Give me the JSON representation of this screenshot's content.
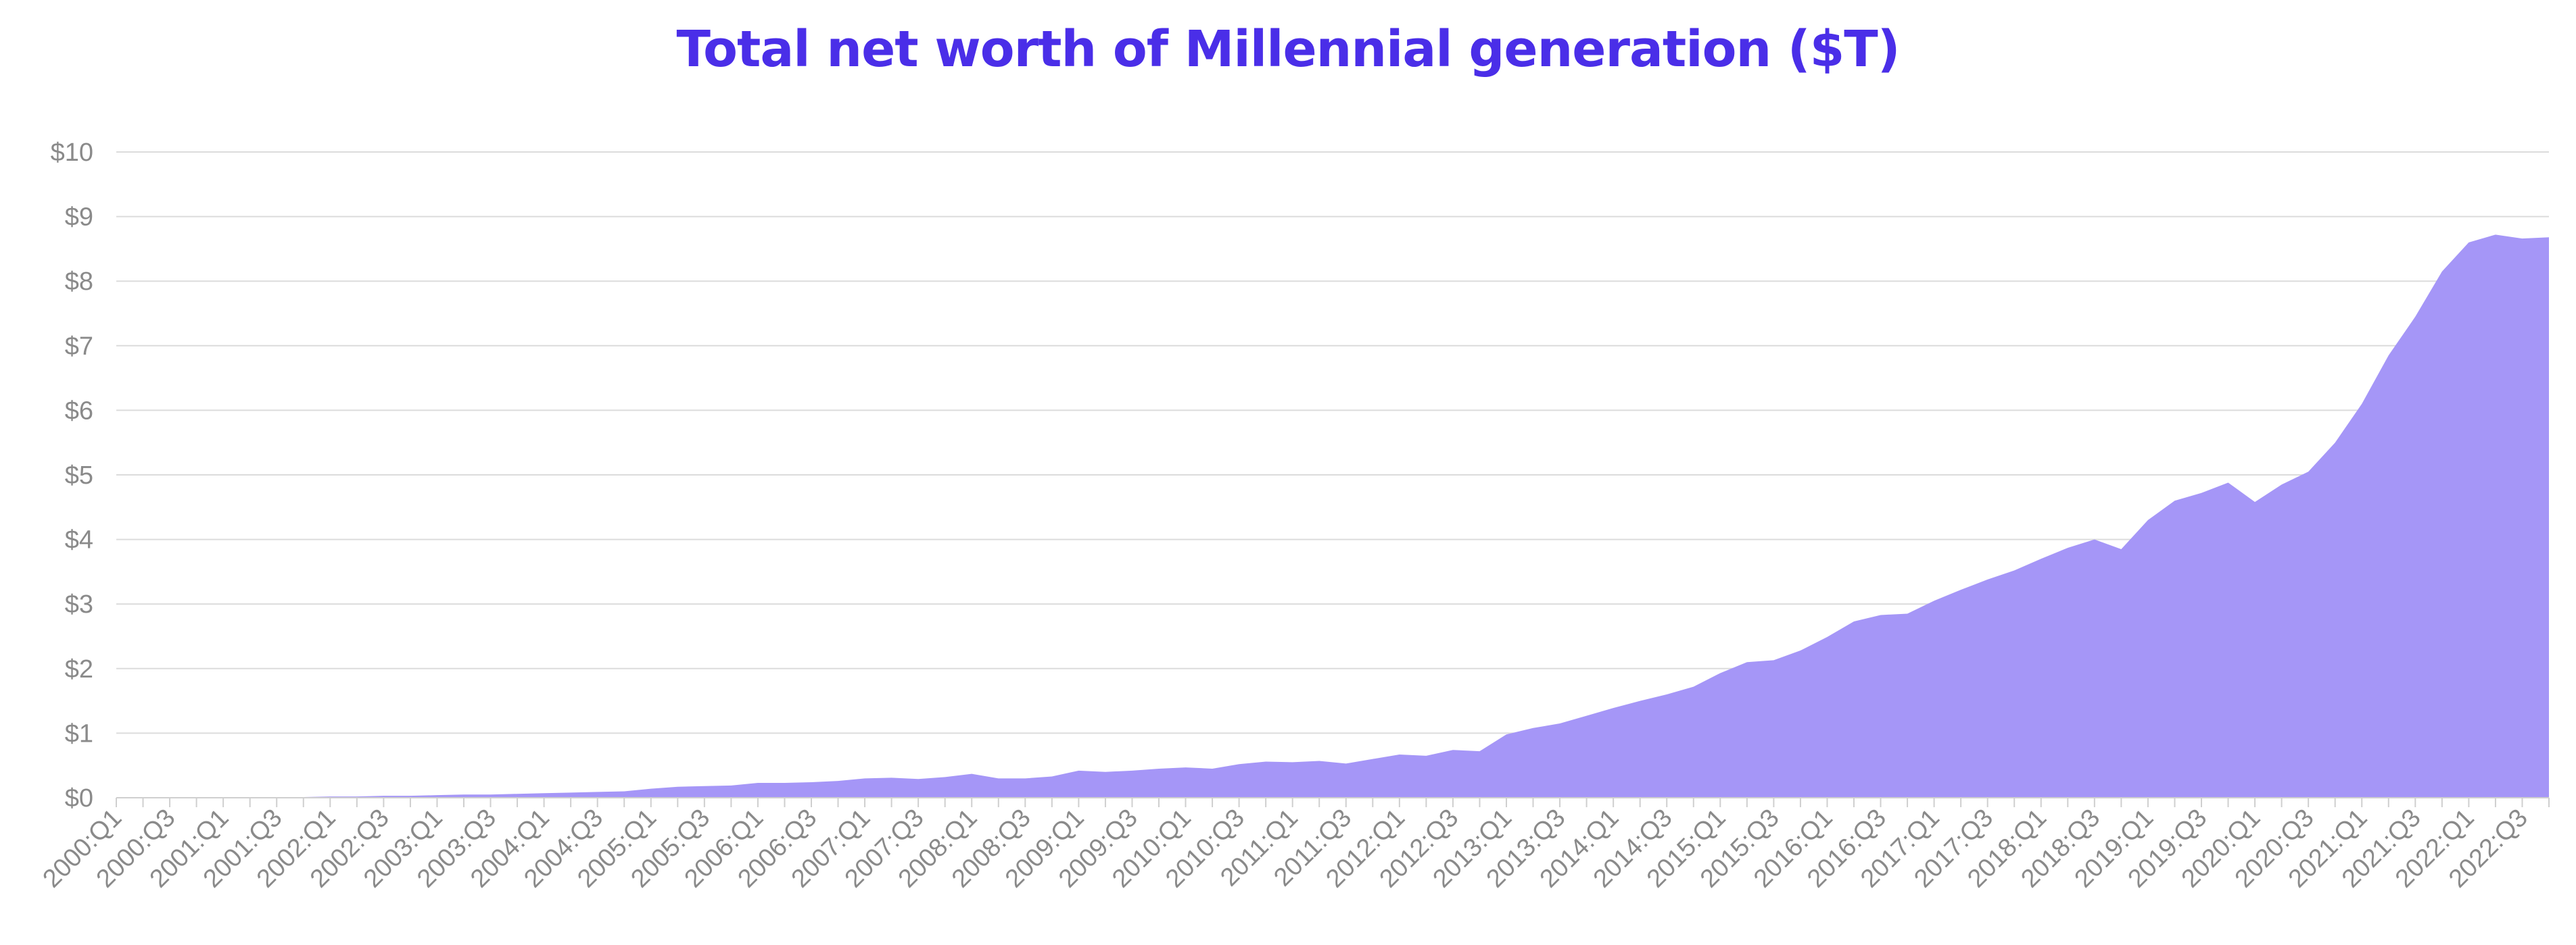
{
  "chart_data": {
    "type": "area",
    "title": "Total net worth of Millennial generation ($T)",
    "xlabel": "",
    "ylabel": "",
    "ylim": [
      0,
      10
    ],
    "yticks": [
      "$0",
      "$1",
      "$2",
      "$3",
      "$4",
      "$5",
      "$6",
      "$7",
      "$8",
      "$9",
      "$10"
    ],
    "grid": true,
    "color": "#a596f7",
    "x": [
      "2000:Q1",
      "2000:Q2",
      "2000:Q3",
      "2000:Q4",
      "2001:Q1",
      "2001:Q2",
      "2001:Q3",
      "2001:Q4",
      "2002:Q1",
      "2002:Q2",
      "2002:Q3",
      "2002:Q4",
      "2003:Q1",
      "2003:Q2",
      "2003:Q3",
      "2003:Q4",
      "2004:Q1",
      "2004:Q2",
      "2004:Q3",
      "2004:Q4",
      "2005:Q1",
      "2005:Q2",
      "2005:Q3",
      "2005:Q4",
      "2006:Q1",
      "2006:Q2",
      "2006:Q3",
      "2006:Q4",
      "2007:Q1",
      "2007:Q2",
      "2007:Q3",
      "2007:Q4",
      "2008:Q1",
      "2008:Q2",
      "2008:Q3",
      "2008:Q4",
      "2009:Q1",
      "2009:Q2",
      "2009:Q3",
      "2009:Q4",
      "2010:Q1",
      "2010:Q2",
      "2010:Q3",
      "2010:Q4",
      "2011:Q1",
      "2011:Q2",
      "2011:Q3",
      "2011:Q4",
      "2012:Q1",
      "2012:Q2",
      "2012:Q3",
      "2012:Q4",
      "2013:Q1",
      "2013:Q2",
      "2013:Q3",
      "2013:Q4",
      "2014:Q1",
      "2014:Q2",
      "2014:Q3",
      "2014:Q4",
      "2015:Q1",
      "2015:Q2",
      "2015:Q3",
      "2015:Q4",
      "2016:Q1",
      "2016:Q2",
      "2016:Q3",
      "2016:Q4",
      "2017:Q1",
      "2017:Q2",
      "2017:Q3",
      "2017:Q4",
      "2018:Q1",
      "2018:Q2",
      "2018:Q3",
      "2018:Q4",
      "2019:Q1",
      "2019:Q2",
      "2019:Q3",
      "2019:Q4",
      "2020:Q1",
      "2020:Q2",
      "2020:Q3",
      "2020:Q4",
      "2021:Q1",
      "2021:Q2",
      "2021:Q3",
      "2021:Q4",
      "2022:Q1",
      "2022:Q2",
      "2022:Q3",
      "2022:Q4"
    ],
    "x_tick_labels": [
      "2000:Q1",
      "2000:Q3",
      "2001:Q1",
      "2001:Q3",
      "2002:Q1",
      "2002:Q3",
      "2003:Q1",
      "2003:Q3",
      "2004:Q1",
      "2004:Q3",
      "2005:Q1",
      "2005:Q3",
      "2006:Q1",
      "2006:Q3",
      "2007:Q1",
      "2007:Q3",
      "2008:Q1",
      "2008:Q3",
      "2009:Q1",
      "2009:Q3",
      "2010:Q1",
      "2010:Q3",
      "2011:Q1",
      "2011:Q3",
      "2012:Q1",
      "2012:Q3",
      "2013:Q1",
      "2013:Q3",
      "2014:Q1",
      "2014:Q3",
      "2015:Q1",
      "2015:Q3",
      "2016:Q1",
      "2016:Q3",
      "2017:Q1",
      "2017:Q3",
      "2018:Q1",
      "2018:Q3",
      "2019:Q1",
      "2019:Q3",
      "2020:Q1",
      "2020:Q3",
      "2021:Q1",
      "2021:Q3",
      "2022:Q1",
      "2022:Q3"
    ],
    "values": [
      0.0,
      0.0,
      0.0,
      0.0,
      0.01,
      0.01,
      0.01,
      0.01,
      0.02,
      0.02,
      0.03,
      0.03,
      0.04,
      0.05,
      0.05,
      0.06,
      0.07,
      0.08,
      0.09,
      0.1,
      0.14,
      0.17,
      0.18,
      0.19,
      0.23,
      0.23,
      0.24,
      0.26,
      0.3,
      0.31,
      0.29,
      0.32,
      0.37,
      0.3,
      0.3,
      0.33,
      0.42,
      0.4,
      0.42,
      0.45,
      0.47,
      0.45,
      0.52,
      0.56,
      0.55,
      0.57,
      0.53,
      0.6,
      0.67,
      0.65,
      0.74,
      0.72,
      0.98,
      1.08,
      1.15,
      1.27,
      1.39,
      1.5,
      1.6,
      1.72,
      1.93,
      2.1,
      2.13,
      2.28,
      2.49,
      2.73,
      2.83,
      2.85,
      3.05,
      3.22,
      3.38,
      3.52,
      3.7,
      3.87,
      4.0,
      3.85,
      4.3,
      4.6,
      4.72,
      4.88,
      4.58,
      4.85,
      5.05,
      5.5,
      6.1,
      6.85,
      7.45,
      8.15,
      8.6,
      8.72,
      8.66,
      8.68
    ]
  }
}
